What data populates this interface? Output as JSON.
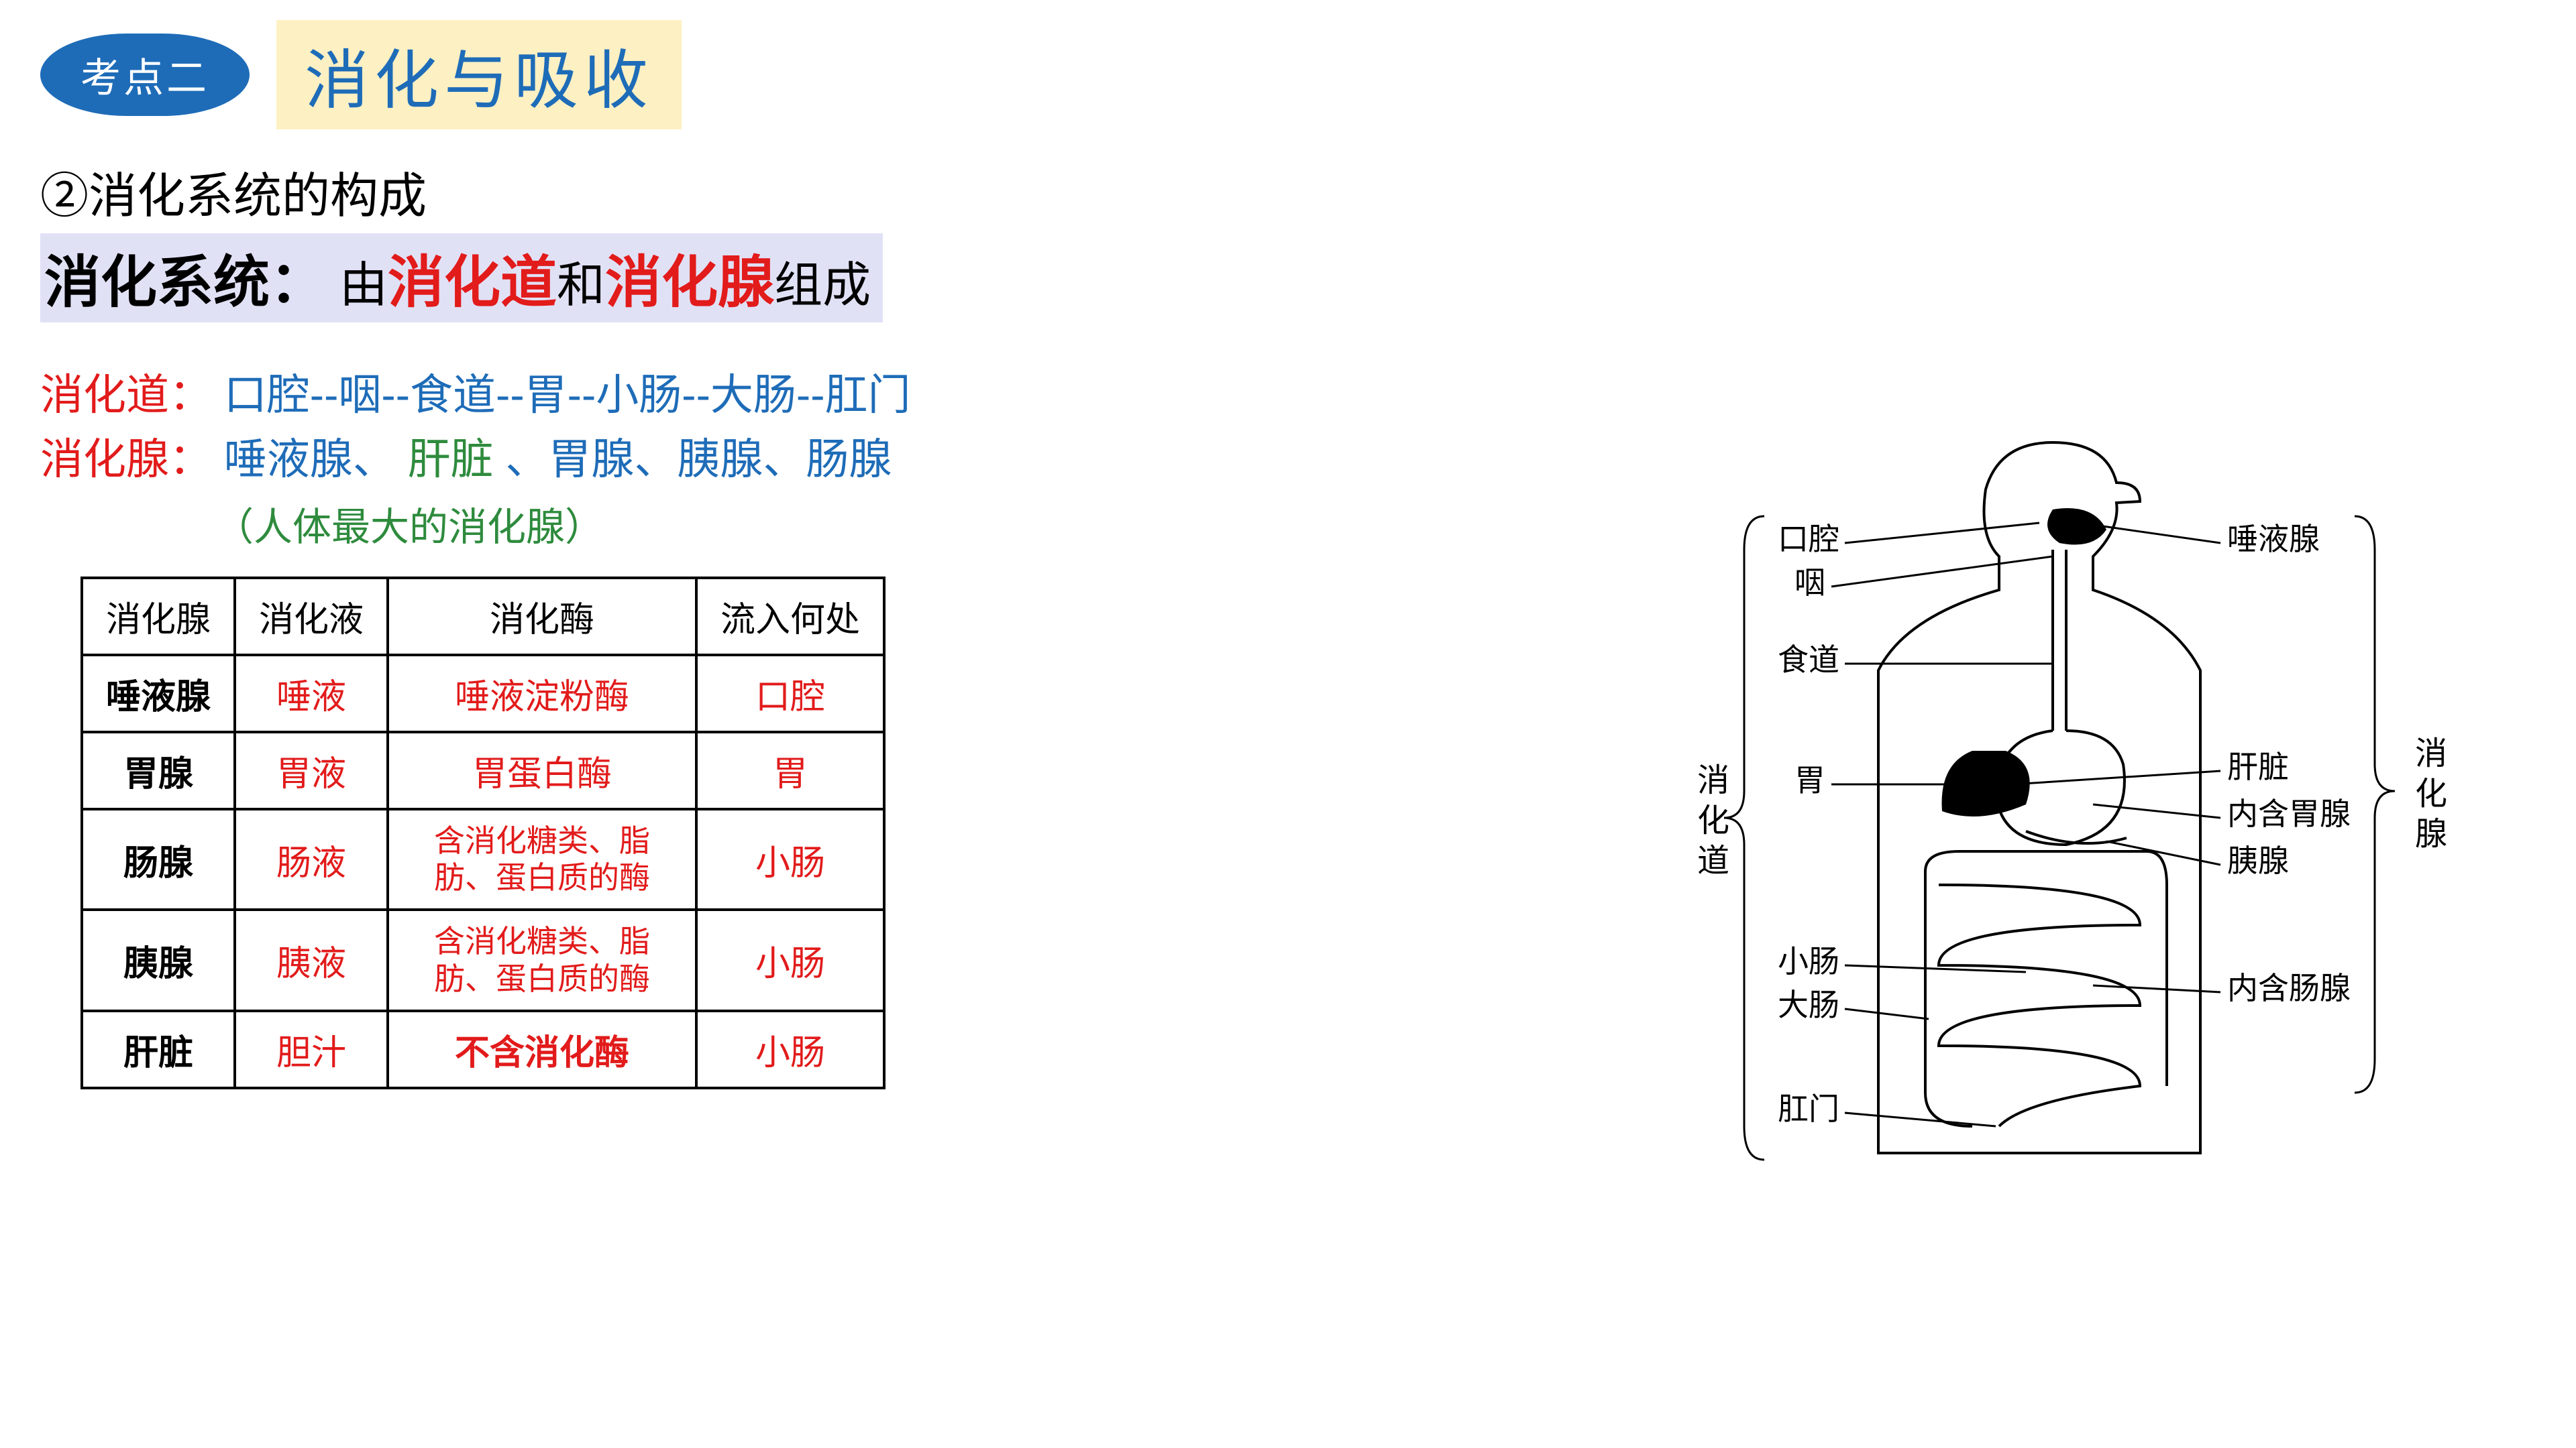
{
  "badge": "考点二",
  "title": "消化与吸收",
  "subheading": "②消化系统的构成",
  "def_label": "消化系统：",
  "def_prefix": "由",
  "def_part1": "消化道",
  "def_mid": "和",
  "def_part2": "消化腺",
  "def_suffix": "组成",
  "tract_label": "消化道：",
  "tract_path": "口腔--咽--食道--胃--小肠--大肠--肛门",
  "glands_label": "消化腺：",
  "glands_seg1": "唾液腺、",
  "glands_liver": "肝脏",
  "glands_seg2": "、胃腺、胰腺、肠腺",
  "note_green": "（人体最大的消化腺）",
  "table": {
    "headers": [
      "消化腺",
      "消化液",
      "消化酶",
      "流入何处"
    ],
    "rows": [
      {
        "g": "唾液腺",
        "f": "唾液",
        "e": "唾液淀粉酶",
        "to": "口腔",
        "ebold": false,
        "esmall": false
      },
      {
        "g": "胃腺",
        "f": "胃液",
        "e": "胃蛋白酶",
        "to": "胃",
        "ebold": false,
        "esmall": false
      },
      {
        "g": "肠腺",
        "f": "肠液",
        "e": "含消化糖类、脂肪、蛋白质的酶",
        "to": "小肠",
        "ebold": false,
        "esmall": true
      },
      {
        "g": "胰腺",
        "f": "胰液",
        "e": "含消化糖类、脂肪、蛋白质的酶",
        "to": "小肠",
        "ebold": false,
        "esmall": true
      },
      {
        "g": "肝脏",
        "f": "胆汁",
        "e": "不含消化酶",
        "to": "小肠",
        "ebold": true,
        "esmall": false
      }
    ]
  },
  "diagram": {
    "left_title_chars": [
      "消",
      "化",
      "道"
    ],
    "right_title_chars": [
      "消",
      "化",
      "腺"
    ],
    "left_labels": [
      "口腔",
      "咽",
      "食道",
      "胃",
      "小肠",
      "大肠",
      "肛门"
    ],
    "right_labels": [
      "唾液腺",
      "肝脏",
      "内含胃腺",
      "胰腺",
      "内含肠腺"
    ],
    "colors": {
      "line": "#000000",
      "text": "#000000",
      "bg": "#ffffff"
    }
  }
}
